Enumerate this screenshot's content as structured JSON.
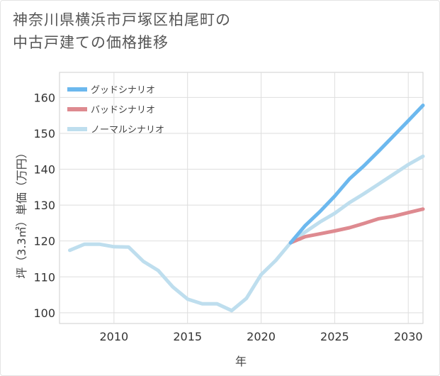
{
  "chart_data": {
    "type": "line",
    "title": "神奈川県横浜市戸塚区柏尾町の\n中古戸建ての価格推移",
    "xlabel": "年",
    "ylabel": "坪（3.3㎡）単価（万円）",
    "xlim": [
      2006.3,
      2031
    ],
    "ylim": [
      97,
      167
    ],
    "xticks": [
      2010,
      2015,
      2020,
      2025,
      2030
    ],
    "yticks": [
      100,
      110,
      120,
      130,
      140,
      150,
      160
    ],
    "grid": true,
    "legend_position": "top-left",
    "series": [
      {
        "name": "グッドシナリオ",
        "color": "#6cb8ee",
        "x": [
          2022,
          2023,
          2024,
          2025,
          2026,
          2027,
          2028,
          2029,
          2030,
          2031
        ],
        "y": [
          119.5,
          124.3,
          128.2,
          132.5,
          137.3,
          141.0,
          145.1,
          149.3,
          153.5,
          157.8
        ]
      },
      {
        "name": "バッドシナリオ",
        "color": "#de8a90",
        "x": [
          2022,
          2023,
          2024,
          2025,
          2026,
          2027,
          2028,
          2029,
          2030,
          2031
        ],
        "y": [
          119.5,
          121.2,
          122.0,
          122.8,
          123.7,
          124.9,
          126.2,
          126.9,
          127.9,
          128.9
        ]
      },
      {
        "name": "ノーマルシナリオ",
        "color": "#bedeee",
        "x": [
          2007,
          2008,
          2009,
          2010,
          2011,
          2012,
          2013,
          2014,
          2015,
          2016,
          2017,
          2018,
          2019,
          2020,
          2021,
          2022,
          2023,
          2024,
          2025,
          2026,
          2027,
          2028,
          2029,
          2030,
          2031
        ],
        "y": [
          117.4,
          119.1,
          119.1,
          118.4,
          118.3,
          114.3,
          111.8,
          107.2,
          103.8,
          102.5,
          102.5,
          100.6,
          104.0,
          110.6,
          114.6,
          119.5,
          122.5,
          125.3,
          127.7,
          130.7,
          133.2,
          135.9,
          138.6,
          141.3,
          143.6
        ]
      }
    ]
  }
}
